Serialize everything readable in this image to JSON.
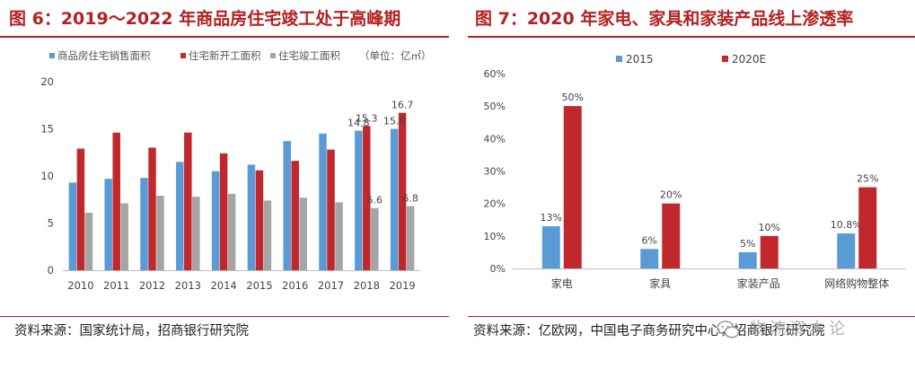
{
  "chart_data": [
    {
      "type": "bar",
      "title": "图 6：2019～2022 年商品房住宅竣工处于高峰期",
      "categories": [
        "2010",
        "2011",
        "2012",
        "2013",
        "2014",
        "2015",
        "2016",
        "2017",
        "2018",
        "2019"
      ],
      "series": [
        {
          "name": "商品房住宅销售面积",
          "color": "#5b9bd5",
          "values": [
            9.3,
            9.7,
            9.8,
            11.5,
            10.5,
            11.2,
            13.7,
            14.5,
            14.8,
            15.0
          ]
        },
        {
          "name": "住宅新开工面积",
          "color": "#c0282d",
          "values": [
            12.9,
            14.6,
            13.0,
            14.6,
            12.4,
            10.6,
            11.6,
            12.8,
            15.3,
            16.7
          ]
        },
        {
          "name": "住宅竣工面积",
          "color": "#a5a5a5",
          "values": [
            6.1,
            7.1,
            7.9,
            7.8,
            8.1,
            7.4,
            7.7,
            7.2,
            6.6,
            6.8
          ]
        }
      ],
      "unit_note": "（单位：亿㎡）",
      "ylim": [
        0,
        20
      ],
      "yticks": [
        "0",
        "5",
        "10",
        "15",
        "20"
      ],
      "data_labels": [
        {
          "series": 0,
          "index": 8,
          "text": "14.8"
        },
        {
          "series": 1,
          "index": 8,
          "text": "15.3"
        },
        {
          "series": 2,
          "index": 8,
          "text": "6.6"
        },
        {
          "series": 0,
          "index": 9,
          "text": "15.0"
        },
        {
          "series": 1,
          "index": 9,
          "text": "16.7"
        },
        {
          "series": 2,
          "index": 9,
          "text": "6.8"
        }
      ],
      "legend_position": "top",
      "source": "资料来源：国家统计局，招商银行研究院"
    },
    {
      "type": "bar",
      "title": "图 7：2020 年家电、家具和家装产品线上渗透率",
      "categories": [
        "家电",
        "家具",
        "家装产品",
        "网络购物整体"
      ],
      "series": [
        {
          "name": "2015",
          "color": "#5b9bd5",
          "values": [
            13,
            6,
            5,
            10.8
          ],
          "labels": [
            "13%",
            "6%",
            "5%",
            "10.8%"
          ]
        },
        {
          "name": "2020E",
          "color": "#c0282d",
          "values": [
            50,
            20,
            10,
            25
          ],
          "labels": [
            "50%",
            "20%",
            "10%",
            "25%"
          ]
        }
      ],
      "ylim": [
        0,
        60
      ],
      "yticks": [
        "0%",
        "10%",
        "20%",
        "30%",
        "40%",
        "50%",
        "60%"
      ],
      "legend_position": "top",
      "source": "资料来源：亿欧网，中国电子商务研究中心，招商银行研究院"
    }
  ],
  "watermark": "物流资本论"
}
